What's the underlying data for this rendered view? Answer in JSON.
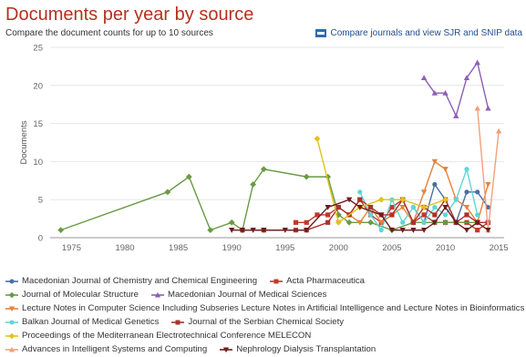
{
  "header": {
    "title": "Documents per year by source",
    "subtitle": "Compare the document counts for up to 10 sources",
    "compare_link": "Compare journals and view SJR and SNIP data",
    "compare_icon": "bar-chart-icon"
  },
  "chart_data": {
    "type": "line",
    "title": "Documents per year by source",
    "xlabel": "",
    "ylabel": "Documents",
    "xlim": [
      1973,
      2015.5
    ],
    "ylim": [
      0,
      25
    ],
    "xticks": [
      1975,
      1980,
      1985,
      1990,
      1995,
      2000,
      2005,
      2010,
      2015
    ],
    "yticks": [
      0,
      5,
      10,
      15,
      20,
      25
    ],
    "grid": "horizontal",
    "legend_position": "bottom",
    "series": [
      {
        "name": "Macedonian Journal of Chemistry and Chemical Engineering",
        "color": "#4a6fa5",
        "marker": "circle",
        "points": [
          [
            2007,
            4
          ],
          [
            2008,
            2
          ],
          [
            2009,
            7
          ],
          [
            2010,
            5
          ],
          [
            2011,
            2
          ],
          [
            2012,
            6
          ],
          [
            2013,
            6
          ],
          [
            2014,
            4
          ]
        ]
      },
      {
        "name": "Acta Pharmaceutica",
        "color": "#c0392b",
        "marker": "square",
        "points": [
          [
            1996,
            2
          ],
          [
            1997,
            2
          ],
          [
            1998,
            3
          ],
          [
            1999,
            3
          ],
          [
            2000,
            4
          ],
          [
            2001,
            3
          ],
          [
            2002,
            5
          ],
          [
            2003,
            3
          ],
          [
            2004,
            2
          ],
          [
            2005,
            4
          ],
          [
            2006,
            5
          ],
          [
            2007,
            2
          ],
          [
            2008,
            3
          ],
          [
            2009,
            2
          ],
          [
            2010,
            2
          ],
          [
            2011,
            2
          ],
          [
            2012,
            2
          ],
          [
            2013,
            1
          ],
          [
            2014,
            2
          ]
        ]
      },
      {
        "name": "Journal of Molecular Structure",
        "color": "#6a9a45",
        "marker": "diamond",
        "points": [
          [
            1974,
            1
          ],
          [
            1984,
            6
          ],
          [
            1986,
            8
          ],
          [
            1988,
            1
          ],
          [
            1990,
            2
          ],
          [
            1991,
            1
          ],
          [
            1992,
            7
          ],
          [
            1993,
            9
          ],
          [
            1997,
            8
          ],
          [
            1999,
            8
          ],
          [
            2000,
            3
          ],
          [
            2001,
            2
          ],
          [
            2003,
            2
          ],
          [
            2005,
            1
          ],
          [
            2007,
            2
          ],
          [
            2009,
            2
          ],
          [
            2010,
            2
          ],
          [
            2013,
            2
          ]
        ]
      },
      {
        "name": "Macedonian Journal of Medical Sciences",
        "color": "#8e5fb5",
        "marker": "triangle",
        "points": [
          [
            2008,
            21
          ],
          [
            2009,
            19
          ],
          [
            2010,
            19
          ],
          [
            2011,
            16
          ],
          [
            2012,
            21
          ],
          [
            2013,
            23
          ],
          [
            2014,
            17
          ]
        ]
      },
      {
        "name": "Lecture Notes in Computer Science Including Subseries Lecture Notes in Artificial Intelligence and Lecture Notes in Bioinformatics",
        "color": "#e8823a",
        "marker": "triangle-down",
        "points": [
          [
            2000,
            2
          ],
          [
            2001,
            3
          ],
          [
            2002,
            2
          ],
          [
            2003,
            4
          ],
          [
            2004,
            2
          ],
          [
            2005,
            3
          ],
          [
            2006,
            4
          ],
          [
            2007,
            2
          ],
          [
            2008,
            6
          ],
          [
            2009,
            10
          ],
          [
            2010,
            9
          ],
          [
            2011,
            5
          ],
          [
            2012,
            4
          ],
          [
            2013,
            2
          ],
          [
            2014,
            7
          ]
        ]
      },
      {
        "name": "Balkan Journal of Medical Genetics",
        "color": "#5ed6d6",
        "marker": "circle",
        "points": [
          [
            2002,
            6
          ],
          [
            2003,
            3
          ],
          [
            2004,
            1
          ],
          [
            2005,
            5
          ],
          [
            2006,
            2
          ],
          [
            2007,
            4
          ],
          [
            2008,
            2
          ],
          [
            2009,
            4
          ],
          [
            2010,
            3
          ],
          [
            2011,
            5
          ],
          [
            2012,
            9
          ],
          [
            2013,
            3
          ]
        ]
      },
      {
        "name": "Journal of the Serbian Chemical Society",
        "color": "#a8342c",
        "marker": "square",
        "points": [
          [
            1991,
            1
          ],
          [
            1993,
            1
          ],
          [
            1996,
            1
          ],
          [
            1997,
            1
          ],
          [
            1999,
            2
          ],
          [
            2000,
            4
          ],
          [
            2001,
            3
          ],
          [
            2002,
            5
          ],
          [
            2003,
            4
          ],
          [
            2004,
            3
          ],
          [
            2005,
            3
          ],
          [
            2006,
            5
          ],
          [
            2007,
            2
          ],
          [
            2008,
            4
          ],
          [
            2009,
            3
          ],
          [
            2010,
            5
          ],
          [
            2011,
            2
          ],
          [
            2012,
            3
          ],
          [
            2013,
            2
          ],
          [
            2014,
            2
          ]
        ]
      },
      {
        "name": "Proceedings of the Mediterranean Electrotechnical Conference MELECON",
        "color": "#e2c21c",
        "marker": "diamond",
        "points": [
          [
            1998,
            13
          ],
          [
            2000,
            2
          ],
          [
            2002,
            4
          ],
          [
            2004,
            5
          ],
          [
            2006,
            5
          ],
          [
            2008,
            4
          ],
          [
            2010,
            5
          ]
        ]
      },
      {
        "name": "Advances in Intelligent Systems and Computing",
        "color": "#f2a07b",
        "marker": "triangle",
        "points": [
          [
            2013,
            17
          ],
          [
            2014,
            1
          ],
          [
            2015,
            14
          ]
        ]
      },
      {
        "name": "Nephrology Dialysis Transplantation",
        "color": "#6b1d1d",
        "marker": "triangle-down",
        "points": [
          [
            1990,
            1
          ],
          [
            1991,
            1
          ],
          [
            1992,
            1
          ],
          [
            1993,
            1
          ],
          [
            1995,
            1
          ],
          [
            1997,
            1
          ],
          [
            1999,
            4
          ],
          [
            2001,
            5
          ],
          [
            2002,
            4
          ],
          [
            2004,
            3
          ],
          [
            2005,
            1
          ],
          [
            2006,
            1
          ],
          [
            2007,
            1
          ],
          [
            2008,
            1
          ],
          [
            2009,
            2
          ],
          [
            2010,
            4
          ],
          [
            2011,
            2
          ],
          [
            2012,
            1
          ],
          [
            2013,
            2
          ],
          [
            2014,
            1
          ]
        ]
      }
    ]
  }
}
